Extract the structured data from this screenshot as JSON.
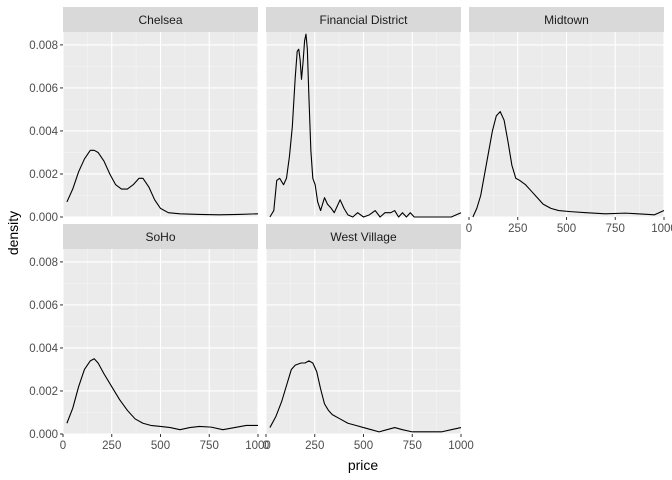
{
  "chart_data": {
    "type": "area",
    "chart_style": "faceted density curves (ggplot2 facet_wrap)",
    "xlabel": "price",
    "ylabel": "density",
    "xlim": [
      0,
      1000
    ],
    "ylim": [
      0,
      0.0086
    ],
    "x_ticks": [
      0,
      250,
      500,
      750,
      1000
    ],
    "y_ticks": [
      0,
      0.002,
      0.004,
      0.006,
      0.008
    ],
    "y_tick_labels": [
      "0.000",
      "0.002",
      "0.004",
      "0.006",
      "0.008"
    ],
    "grid": true,
    "colors": {
      "panel_bg": "#ebebeb",
      "strip_bg": "#d9d9d9",
      "grid_major": "#ffffff",
      "grid_minor": "#f5f5f5",
      "line": "#000000",
      "tick": "#333333"
    },
    "facets": [
      {
        "label": "Chelsea",
        "points": [
          [
            20,
            0.0007
          ],
          [
            50,
            0.0013
          ],
          [
            80,
            0.0021
          ],
          [
            110,
            0.0027
          ],
          [
            140,
            0.0031
          ],
          [
            160,
            0.0031
          ],
          [
            180,
            0.003
          ],
          [
            210,
            0.0026
          ],
          [
            240,
            0.002
          ],
          [
            270,
            0.0015
          ],
          [
            300,
            0.0013
          ],
          [
            330,
            0.0013
          ],
          [
            360,
            0.0015
          ],
          [
            390,
            0.0018
          ],
          [
            410,
            0.0018
          ],
          [
            440,
            0.0014
          ],
          [
            470,
            0.0008
          ],
          [
            500,
            0.0004
          ],
          [
            540,
            0.0002
          ],
          [
            600,
            0.00015
          ],
          [
            700,
            0.00012
          ],
          [
            800,
            0.0001
          ],
          [
            900,
            0.00012
          ],
          [
            1000,
            0.00015
          ]
        ]
      },
      {
        "label": "Financial District",
        "points": [
          [
            20,
            0.0
          ],
          [
            40,
            0.0003
          ],
          [
            55,
            0.0017
          ],
          [
            70,
            0.0018
          ],
          [
            90,
            0.0015
          ],
          [
            105,
            0.0018
          ],
          [
            120,
            0.0028
          ],
          [
            135,
            0.0042
          ],
          [
            150,
            0.0065
          ],
          [
            160,
            0.0077
          ],
          [
            168,
            0.0078
          ],
          [
            175,
            0.0073
          ],
          [
            182,
            0.0064
          ],
          [
            190,
            0.0072
          ],
          [
            198,
            0.0082
          ],
          [
            205,
            0.0085
          ],
          [
            212,
            0.0078
          ],
          [
            220,
            0.0056
          ],
          [
            230,
            0.0031
          ],
          [
            240,
            0.0018
          ],
          [
            252,
            0.0015
          ],
          [
            265,
            0.0007
          ],
          [
            280,
            0.0003
          ],
          [
            300,
            0.0009
          ],
          [
            315,
            0.0006
          ],
          [
            335,
            0.0004
          ],
          [
            350,
            0.0002
          ],
          [
            365,
            0.0005
          ],
          [
            380,
            0.0008
          ],
          [
            400,
            0.0004
          ],
          [
            420,
            0.0001
          ],
          [
            445,
            0.0
          ],
          [
            470,
            0.0002
          ],
          [
            500,
            0.0
          ],
          [
            530,
            0.0001
          ],
          [
            560,
            0.0003
          ],
          [
            585,
            0.0
          ],
          [
            610,
            0.0002
          ],
          [
            640,
            0.0002
          ],
          [
            660,
            0.0003
          ],
          [
            680,
            0.0
          ],
          [
            700,
            0.0002
          ],
          [
            720,
            0.0
          ],
          [
            740,
            0.0002
          ],
          [
            760,
            0.0
          ],
          [
            800,
            0.0
          ],
          [
            900,
            0.0
          ],
          [
            950,
            0.0
          ],
          [
            1000,
            0.0002
          ]
        ]
      },
      {
        "label": "Midtown",
        "points": [
          [
            20,
            0.0
          ],
          [
            40,
            0.0004
          ],
          [
            60,
            0.001
          ],
          [
            80,
            0.002
          ],
          [
            100,
            0.003
          ],
          [
            120,
            0.004
          ],
          [
            140,
            0.0047
          ],
          [
            160,
            0.0049
          ],
          [
            180,
            0.0045
          ],
          [
            200,
            0.0035
          ],
          [
            220,
            0.0024
          ],
          [
            240,
            0.0018
          ],
          [
            260,
            0.0017
          ],
          [
            290,
            0.0015
          ],
          [
            320,
            0.0012
          ],
          [
            350,
            0.0009
          ],
          [
            380,
            0.0006
          ],
          [
            420,
            0.0004
          ],
          [
            460,
            0.0003
          ],
          [
            520,
            0.00025
          ],
          [
            600,
            0.0002
          ],
          [
            700,
            0.00015
          ],
          [
            800,
            0.00018
          ],
          [
            900,
            0.00013
          ],
          [
            950,
            0.0001
          ],
          [
            1000,
            0.0003
          ]
        ]
      },
      {
        "label": "SoHo",
        "points": [
          [
            20,
            0.0005
          ],
          [
            50,
            0.0012
          ],
          [
            80,
            0.0022
          ],
          [
            110,
            0.003
          ],
          [
            140,
            0.0034
          ],
          [
            160,
            0.0035
          ],
          [
            180,
            0.0033
          ],
          [
            210,
            0.0028
          ],
          [
            250,
            0.0022
          ],
          [
            290,
            0.0016
          ],
          [
            330,
            0.0011
          ],
          [
            370,
            0.0007
          ],
          [
            410,
            0.0005
          ],
          [
            450,
            0.0004
          ],
          [
            500,
            0.00035
          ],
          [
            550,
            0.0003
          ],
          [
            600,
            0.0002
          ],
          [
            650,
            0.0003
          ],
          [
            700,
            0.00035
          ],
          [
            760,
            0.00032
          ],
          [
            820,
            0.0002
          ],
          [
            880,
            0.0003
          ],
          [
            940,
            0.0004
          ],
          [
            1000,
            0.0004
          ]
        ]
      },
      {
        "label": "West Village",
        "points": [
          [
            20,
            0.0003
          ],
          [
            50,
            0.0008
          ],
          [
            80,
            0.0015
          ],
          [
            110,
            0.0024
          ],
          [
            130,
            0.003
          ],
          [
            150,
            0.0032
          ],
          [
            180,
            0.0033
          ],
          [
            200,
            0.0033
          ],
          [
            220,
            0.0034
          ],
          [
            240,
            0.0033
          ],
          [
            260,
            0.0029
          ],
          [
            280,
            0.0021
          ],
          [
            300,
            0.0014
          ],
          [
            320,
            0.0011
          ],
          [
            340,
            0.0009
          ],
          [
            380,
            0.0007
          ],
          [
            420,
            0.0005
          ],
          [
            460,
            0.0004
          ],
          [
            500,
            0.0003
          ],
          [
            540,
            0.0002
          ],
          [
            580,
            0.0001
          ],
          [
            620,
            0.0002
          ],
          [
            660,
            0.0003
          ],
          [
            700,
            0.0002
          ],
          [
            750,
            0.0001
          ],
          [
            800,
            0.0001
          ],
          [
            850,
            0.0001
          ],
          [
            900,
            0.0001
          ],
          [
            950,
            0.0002
          ],
          [
            1000,
            0.0003
          ]
        ]
      }
    ]
  }
}
